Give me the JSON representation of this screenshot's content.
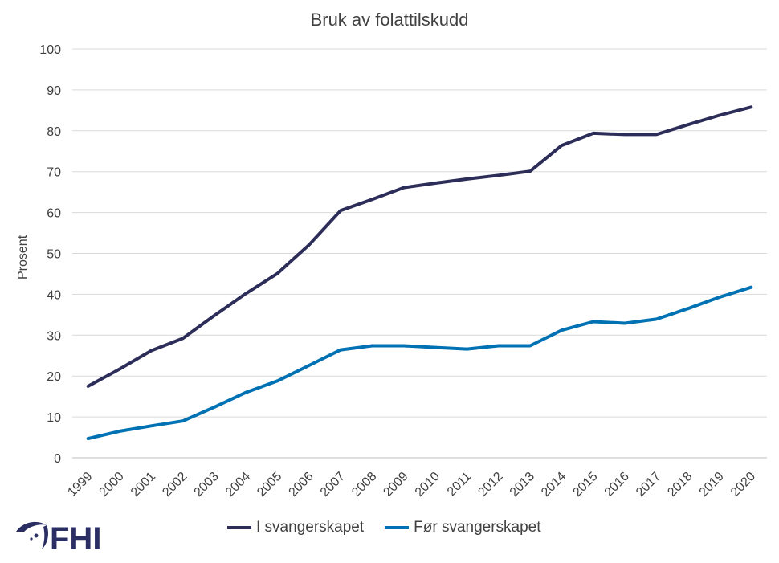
{
  "brand": {
    "logo_text": "FHI",
    "color": "#2b2e63",
    "accent": "#1f77b4"
  },
  "chart_data": {
    "type": "line",
    "title": "Bruk av folattilskudd",
    "xlabel": "",
    "ylabel": "Prosent",
    "ylim": [
      0,
      100
    ],
    "yticks": [
      0,
      10,
      20,
      30,
      40,
      50,
      60,
      70,
      80,
      90,
      100
    ],
    "grid": true,
    "legend_position": "bottom",
    "categories": [
      "1999",
      "2000",
      "2001",
      "2002",
      "2003",
      "2004",
      "2005",
      "2006",
      "2007",
      "2008",
      "2009",
      "2010",
      "2011",
      "2012",
      "2013",
      "2014",
      "2015",
      "2016",
      "2017",
      "2018",
      "2019",
      "2020"
    ],
    "series": [
      {
        "name": "I svangerskapet",
        "color": "#2d2d59",
        "values": [
          17.5,
          21.7,
          26.2,
          29.2,
          34.8,
          40.2,
          45.1,
          52.1,
          60.5,
          63.2,
          66.1,
          67.2,
          68.2,
          69.1,
          70.1,
          76.4,
          79.4,
          79.1,
          79.1,
          81.5,
          83.8,
          85.8
        ]
      },
      {
        "name": "Før svangerskapet",
        "color": "#0071b3",
        "values": [
          4.7,
          6.5,
          7.8,
          9.0,
          12.4,
          16.0,
          18.8,
          22.6,
          26.4,
          27.4,
          27.4,
          27.0,
          26.6,
          27.4,
          27.4,
          31.2,
          33.3,
          32.9,
          33.9,
          36.5,
          39.3,
          41.7
        ]
      }
    ]
  }
}
